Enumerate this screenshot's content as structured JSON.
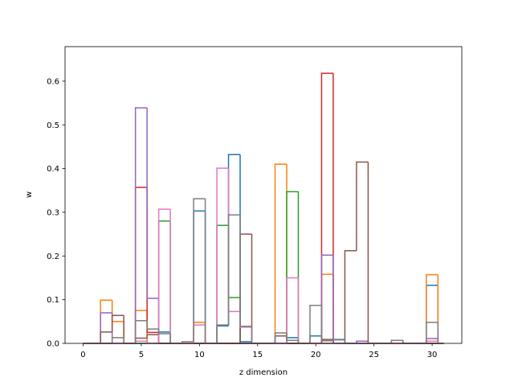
{
  "chart_data": {
    "type": "step_histogram",
    "xlabel": "z dimension",
    "ylabel": "w",
    "bins": [
      0,
      0.5,
      1.5,
      2.5,
      3.5,
      4.5,
      5.5,
      6.5,
      7.5,
      8.5,
      9.5,
      10.5,
      11.5,
      12.5,
      13.5,
      14.5,
      15.5,
      16.5,
      17.5,
      18.5,
      19.5,
      20.5,
      21.5,
      22.5,
      23.5,
      24.5,
      25.5,
      26.5,
      27.5,
      28.5,
      29.5,
      30.5,
      31
    ],
    "xlim": [
      -1.55,
      32.55
    ],
    "ylim": [
      0,
      0.679
    ],
    "xticks": [
      0,
      5,
      10,
      15,
      20,
      25,
      30
    ],
    "yticks": [
      {
        "value": 0,
        "label": "0.0"
      },
      0.1,
      0.2,
      0.3,
      0.4,
      0.5,
      0.6
    ],
    "series": [
      {
        "color": "#1f77b4",
        "values": [
          0,
          0,
          0,
          0,
          0,
          0,
          0,
          0.026,
          0,
          0,
          0.303,
          0,
          0.04,
          0.432,
          0.004,
          0,
          0,
          0,
          0.013,
          0,
          0.017,
          0,
          0.009,
          0,
          0,
          0,
          0,
          0,
          0,
          0,
          0.133,
          0
        ]
      },
      {
        "color": "#ff7f0e",
        "values": [
          0,
          0,
          0.099,
          0.05,
          0,
          0.075,
          0,
          0,
          0,
          0,
          0.048,
          0,
          0,
          0,
          0,
          0,
          0,
          0.41,
          0,
          0,
          0,
          0.158,
          0,
          0,
          0,
          0,
          0,
          0,
          0,
          0,
          0.157,
          0
        ]
      },
      {
        "color": "#2ca02c",
        "values": [
          0,
          0,
          0,
          0,
          0,
          0,
          0,
          0.28,
          0,
          0,
          0,
          0,
          0.27,
          0.105,
          0,
          0,
          0,
          0,
          0.347,
          0,
          0,
          0,
          0,
          0,
          0,
          0,
          0,
          0,
          0,
          0,
          0,
          0
        ]
      },
      {
        "color": "#d62728",
        "values": [
          0,
          0,
          0,
          0,
          0,
          0.357,
          0.025,
          0,
          0,
          0,
          0,
          0,
          0,
          0,
          0,
          0,
          0,
          0,
          0,
          0,
          0,
          0.618,
          0,
          0,
          0,
          0,
          0,
          0,
          0,
          0,
          0,
          0
        ]
      },
      {
        "color": "#9467bd",
        "values": [
          0,
          0,
          0.07,
          0,
          0,
          0.539,
          0.103,
          0,
          0,
          0,
          0,
          0,
          0,
          0,
          0,
          0,
          0,
          0,
          0,
          0,
          0,
          0.202,
          0,
          0,
          0.005,
          0,
          0,
          0,
          0,
          0,
          0.011,
          0
        ]
      },
      {
        "color": "#8c564b",
        "values": [
          0,
          0,
          0.026,
          0.064,
          0,
          0.012,
          0.02,
          0,
          0,
          0,
          0,
          0,
          0,
          0,
          0.25,
          0,
          0,
          0.017,
          0,
          0,
          0,
          0.009,
          0,
          0.212,
          0.415,
          0,
          0,
          0.007,
          0,
          0,
          0,
          0
        ]
      },
      {
        "color": "#e377c2",
        "values": [
          0,
          0,
          0,
          0,
          0,
          0.005,
          0,
          0.307,
          0,
          0,
          0.042,
          0,
          0.401,
          0.073,
          0.037,
          0,
          0,
          0,
          0.15,
          0,
          0,
          0,
          0,
          0,
          0,
          0,
          0,
          0,
          0,
          0,
          0.005,
          0
        ]
      },
      {
        "color": "#7f7f7f",
        "values": [
          0,
          0,
          0,
          0.013,
          0,
          0.052,
          0.033,
          0.022,
          0,
          0.004,
          0.331,
          0,
          0.042,
          0.294,
          0.039,
          0,
          0,
          0.024,
          0.007,
          0,
          0.087,
          0.006,
          0.008,
          0,
          0,
          0,
          0,
          0.007,
          0,
          0,
          0.048,
          0
        ]
      }
    ]
  }
}
